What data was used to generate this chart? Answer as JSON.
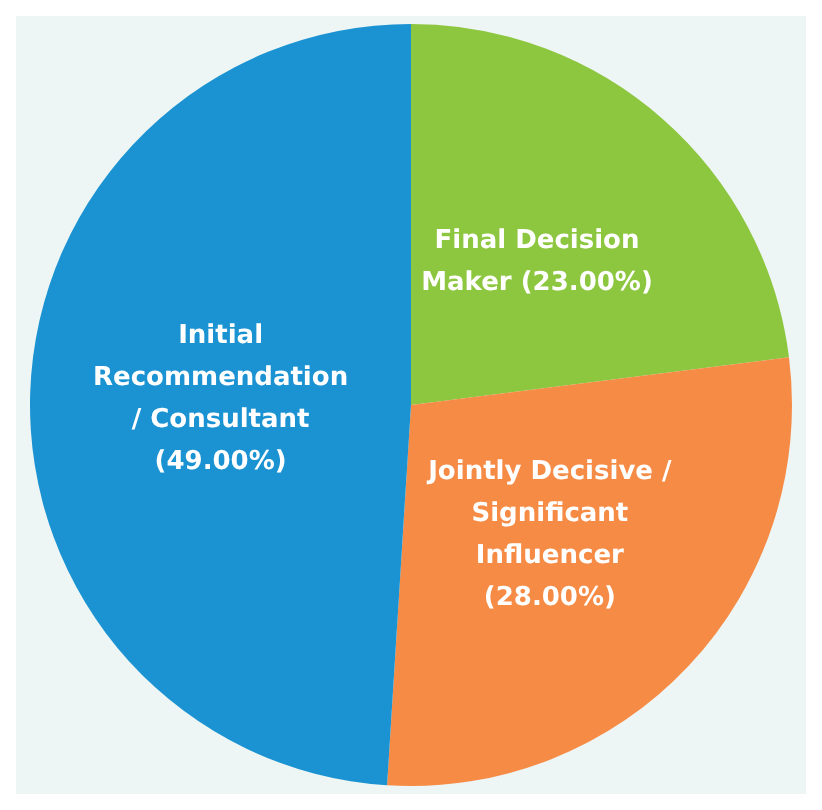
{
  "chart_data": {
    "type": "pie",
    "categories": [
      "Final Decision Maker",
      "Jointly Decisive / Significant Influencer",
      "Initial Recommendation / Consultant"
    ],
    "values": [
      23,
      28,
      49
    ],
    "colors": [
      "#8dc63f",
      "#f68b45",
      "#1b93d2"
    ],
    "value_labels": [
      "(23.00%)",
      "(28.00%)",
      "(49.00%)"
    ],
    "legend": false
  }
}
